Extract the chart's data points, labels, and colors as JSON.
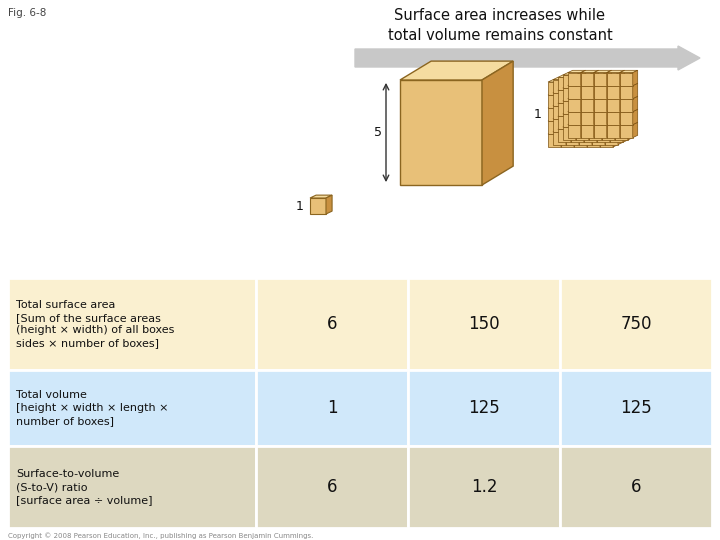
{
  "fig_label": "Fig. 6-8",
  "title_line1": "Surface area increases while",
  "title_line2": "total volume remains constant",
  "arrow_color": "#c8c8c8",
  "table": {
    "row_labels": [
      "Total surface area\n[Sum of the surface areas\n(height × width) of all boxes\nsides × number of boxes]",
      "Total volume\n[height × width × length ×\nnumber of boxes]",
      "Surface-to-volume\n(S-to-V) ratio\n[surface area ÷ volume]"
    ],
    "col_values": [
      [
        "6",
        "1",
        "6"
      ],
      [
        "150",
        "125",
        "1.2"
      ],
      [
        "750",
        "125",
        "6"
      ]
    ],
    "row_colors": [
      "#faf0d0",
      "#d0e8fa",
      "#ddd8c0"
    ],
    "label_bg_colors": [
      "#faf0d0",
      "#d0e8fa",
      "#ddd8c0"
    ],
    "value_bg_colors": [
      "#faf0d0",
      "#d0e8fa",
      "#ddd8c0"
    ]
  },
  "cube_color_face": "#e8c078",
  "cube_color_top": "#f5dca0",
  "cube_color_side": "#c89040",
  "bg_color": "#ffffff",
  "copyright": "Copyright © 2008 Pearson Education, Inc., publishing as Pearson Benjamin Cummings."
}
